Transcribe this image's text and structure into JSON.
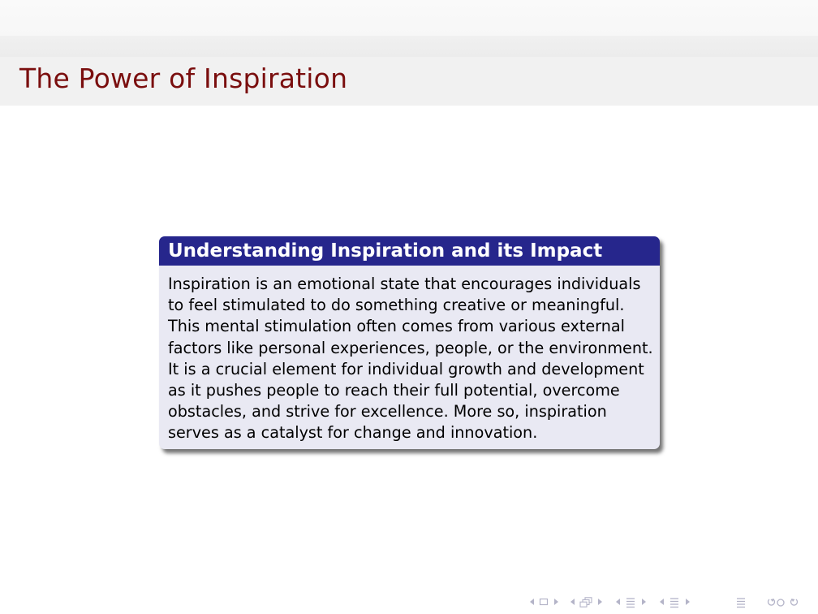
{
  "slide": {
    "title": "The Power of Inspiration"
  },
  "block": {
    "title": "Understanding Inspiration and its Impact",
    "lines": [
      "Inspiration is an emotional state that encourages individuals",
      "to feel stimulated to do something creative or meaningful.",
      "This mental stimulation often comes from various external",
      "factors like personal experiences, people, or the environment.",
      "It is a crucial element for individual growth and development",
      "as it pushes people to reach their full potential, overcome",
      "obstacles, and strive for excellence. More so, inspiration",
      "serves as a catalyst for change and innovation."
    ]
  },
  "colors": {
    "title_text": "#7a0e0e",
    "block_header": "#26268c",
    "block_body": "#e9e9f3",
    "nav_symbols": "#b4b4c8"
  },
  "navigation": {
    "icons": [
      "prev-slide-arrow-icon",
      "slide-icon",
      "next-slide-arrow-icon",
      "prev-frame-arrow-icon",
      "frame-icon",
      "next-frame-arrow-icon",
      "prev-subsection-arrow-icon",
      "subsection-icon",
      "next-subsection-arrow-icon",
      "prev-section-arrow-icon",
      "section-icon",
      "next-section-arrow-icon",
      "outline-icon",
      "search-back-icon",
      "search-forward-icon"
    ]
  }
}
